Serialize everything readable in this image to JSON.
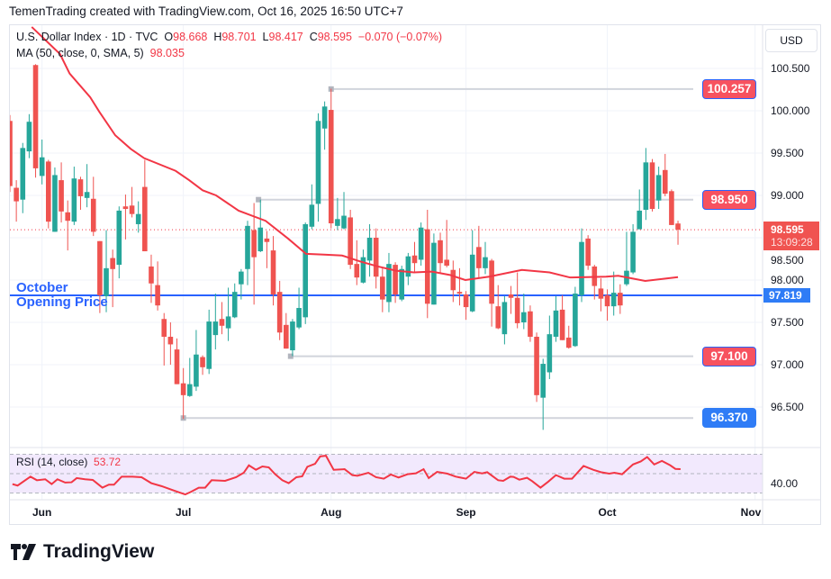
{
  "credit": "TemenTrading created with TradingView.com, Oct 16, 2025 16:50 UTC+7",
  "legend": {
    "symbol": "U.S. Dollar Index · 1D · TVC",
    "o_label": "O",
    "o": "98.668",
    "h_label": "H",
    "h": "98.701",
    "l_label": "L",
    "l": "98.417",
    "c_label": "C",
    "c": "98.595",
    "change": "−0.070 (−0.07%)",
    "ma_label": "MA (50, close, 0, SMA, 5)",
    "ma_value": "98.035"
  },
  "currency_button": "USD",
  "annotation": {
    "line1": "October",
    "line2": "Opening Price"
  },
  "level_tags": [
    {
      "label": "100.257",
      "value": 100.257,
      "style": "red",
      "from_bar": 50
    },
    {
      "label": "98.950",
      "value": 98.95,
      "style": "red",
      "from_bar": 38.7
    },
    {
      "label": "97.100",
      "value": 97.1,
      "style": "red",
      "from_bar": 43.7
    },
    {
      "label": "96.370",
      "value": 96.37,
      "style": "blue",
      "from_bar": 27
    }
  ],
  "current_price": {
    "value": "98.595",
    "countdown": "13:09:28"
  },
  "october_open": {
    "value": 97.819,
    "label": "97.819"
  },
  "rsi_legend": {
    "label": "RSI (14, close)",
    "value": "53.72"
  },
  "rsi_axis_label": "40.00",
  "brand": "TradingView",
  "colors": {
    "up": "#26a69a",
    "down": "#ef5350",
    "ma": "#f23645",
    "oct_line": "#2962ff",
    "rsi": "#f23645"
  },
  "chart_data": {
    "type": "candlestick",
    "title": "U.S. Dollar Index · 1D · TVC",
    "ylim": [
      96.0,
      100.85
    ],
    "y_ticks": [
      "100.500",
      "100.000",
      "99.500",
      "99.000",
      "98.500",
      "98.000",
      "97.500",
      "97.000",
      "96.500"
    ],
    "x_ticks": [
      {
        "label": "Jun",
        "bar": 5
      },
      {
        "label": "Jul",
        "bar": 27
      },
      {
        "label": "Aug",
        "bar": 50
      },
      {
        "label": "Sep",
        "bar": 71
      },
      {
        "label": "Oct",
        "bar": 93
      },
      {
        "label": "Nov",
        "bar": 116
      }
    ],
    "ohlc": [
      [
        99.88,
        99.95,
        99.04,
        99.11
      ],
      [
        99.09,
        99.18,
        98.69,
        98.93
      ],
      [
        98.95,
        99.62,
        98.79,
        99.56
      ],
      [
        99.52,
        99.96,
        99.44,
        99.87
      ],
      [
        100.54,
        100.55,
        99.21,
        99.32
      ],
      [
        99.23,
        99.66,
        99.13,
        99.45
      ],
      [
        99.4,
        99.42,
        98.61,
        98.69
      ],
      [
        98.57,
        99.33,
        98.57,
        99.24
      ],
      [
        99.18,
        99.39,
        98.68,
        98.81
      ],
      [
        98.8,
        98.94,
        98.35,
        98.7
      ],
      [
        98.69,
        99.34,
        98.65,
        99.2
      ],
      [
        99.19,
        99.22,
        98.83,
        98.99
      ],
      [
        98.97,
        99.37,
        98.86,
        99.04
      ],
      [
        98.96,
        99.22,
        98.52,
        98.57
      ],
      [
        98.46,
        98.46,
        97.61,
        97.82
      ],
      [
        97.81,
        98.59,
        97.62,
        98.14
      ],
      [
        98.26,
        98.36,
        97.68,
        98.13
      ],
      [
        98.18,
        98.87,
        98.02,
        98.82
      ],
      [
        98.87,
        99.01,
        98.48,
        98.84
      ],
      [
        98.88,
        99.1,
        98.74,
        98.78
      ],
      [
        98.66,
        98.93,
        98.56,
        98.78
      ],
      [
        99.1,
        99.42,
        98.34,
        98.34
      ],
      [
        98.16,
        98.3,
        97.73,
        97.96
      ],
      [
        97.94,
        98.22,
        97.64,
        97.7
      ],
      [
        97.54,
        97.61,
        96.99,
        97.33
      ],
      [
        97.33,
        97.5,
        97.0,
        97.24
      ],
      [
        97.18,
        97.31,
        96.77,
        96.77
      ],
      [
        96.78,
        96.96,
        96.36,
        96.64
      ],
      [
        96.63,
        97.08,
        96.62,
        96.77
      ],
      [
        96.74,
        97.41,
        96.69,
        97.12
      ],
      [
        97.09,
        97.11,
        96.88,
        96.97
      ],
      [
        96.95,
        97.65,
        96.89,
        97.51
      ],
      [
        97.35,
        97.84,
        97.18,
        97.51
      ],
      [
        97.54,
        97.74,
        97.36,
        97.46
      ],
      [
        97.43,
        97.91,
        97.28,
        97.57
      ],
      [
        97.56,
        97.96,
        97.55,
        97.86
      ],
      [
        97.95,
        98.13,
        97.77,
        98.1
      ],
      [
        98.13,
        98.7,
        97.94,
        98.64
      ],
      [
        98.59,
        98.91,
        97.71,
        98.27
      ],
      [
        98.34,
        98.95,
        98.33,
        98.62
      ],
      [
        98.49,
        98.58,
        98.14,
        98.45
      ],
      [
        98.35,
        98.52,
        97.7,
        97.83
      ],
      [
        97.86,
        97.99,
        97.29,
        97.38
      ],
      [
        97.47,
        97.61,
        97.19,
        97.19
      ],
      [
        97.17,
        97.54,
        97.1,
        97.51
      ],
      [
        97.44,
        97.91,
        97.42,
        97.67
      ],
      [
        97.56,
        98.68,
        97.48,
        98.66
      ],
      [
        98.63,
        99.13,
        98.6,
        98.89
      ],
      [
        98.9,
        99.97,
        98.69,
        99.88
      ],
      [
        99.79,
        100.11,
        99.54,
        100.05
      ],
      [
        100.01,
        100.26,
        98.61,
        98.67
      ],
      [
        98.64,
        98.97,
        98.59,
        98.72
      ],
      [
        98.61,
        99.04,
        98.6,
        98.76
      ],
      [
        98.74,
        98.83,
        98.13,
        98.18
      ],
      [
        98.19,
        98.47,
        97.94,
        98.03
      ],
      [
        97.97,
        98.36,
        97.96,
        98.27
      ],
      [
        98.23,
        98.66,
        98.04,
        98.5
      ],
      [
        98.5,
        98.61,
        97.9,
        98.04
      ],
      [
        98.04,
        98.15,
        97.62,
        97.77
      ],
      [
        97.74,
        98.32,
        97.62,
        98.19
      ],
      [
        98.18,
        98.21,
        97.73,
        97.83
      ],
      [
        97.77,
        98.17,
        97.75,
        98.13
      ],
      [
        98.04,
        98.32,
        97.94,
        98.28
      ],
      [
        98.29,
        98.45,
        98.08,
        98.2
      ],
      [
        98.24,
        98.68,
        98.17,
        98.62
      ],
      [
        98.6,
        98.83,
        97.55,
        97.72
      ],
      [
        97.71,
        98.55,
        97.71,
        98.44
      ],
      [
        98.47,
        98.56,
        98.08,
        98.2
      ],
      [
        98.24,
        98.71,
        98.15,
        98.17
      ],
      [
        98.12,
        98.23,
        97.74,
        97.88
      ],
      [
        97.86,
        98.14,
        97.7,
        97.84
      ],
      [
        97.83,
        97.87,
        97.53,
        97.68
      ],
      [
        97.63,
        98.59,
        97.62,
        98.3
      ],
      [
        98.39,
        98.64,
        98.03,
        98.14
      ],
      [
        98.14,
        98.45,
        98.07,
        98.27
      ],
      [
        98.23,
        98.25,
        97.45,
        97.72
      ],
      [
        97.69,
        97.94,
        97.42,
        97.43
      ],
      [
        97.36,
        97.81,
        97.24,
        97.74
      ],
      [
        97.83,
        97.93,
        97.6,
        97.79
      ],
      [
        97.79,
        98.09,
        97.43,
        97.49
      ],
      [
        97.5,
        97.84,
        97.42,
        97.62
      ],
      [
        97.63,
        97.7,
        97.27,
        97.33
      ],
      [
        97.33,
        97.38,
        96.56,
        96.64
      ],
      [
        96.61,
        97.07,
        96.23,
        97.01
      ],
      [
        96.91,
        97.58,
        96.83,
        97.36
      ],
      [
        97.33,
        97.81,
        97.27,
        97.64
      ],
      [
        97.65,
        97.82,
        97.29,
        97.29
      ],
      [
        97.32,
        97.46,
        97.19,
        97.2
      ],
      [
        97.22,
        97.92,
        97.21,
        97.84
      ],
      [
        97.82,
        98.61,
        97.74,
        98.45
      ],
      [
        98.49,
        98.53,
        98.12,
        98.17
      ],
      [
        98.16,
        98.18,
        97.77,
        97.93
      ],
      [
        97.9,
        98.02,
        97.63,
        97.78
      ],
      [
        97.82,
        97.89,
        97.52,
        97.69
      ],
      [
        97.69,
        98.1,
        97.58,
        97.85
      ],
      [
        97.85,
        97.95,
        97.6,
        97.7
      ],
      [
        97.95,
        98.57,
        97.93,
        98.11
      ],
      [
        98.09,
        98.66,
        98.07,
        98.57
      ],
      [
        98.6,
        99.07,
        98.6,
        98.82
      ],
      [
        98.83,
        99.56,
        98.71,
        99.39
      ],
      [
        99.39,
        99.43,
        98.81,
        98.84
      ],
      [
        98.94,
        99.34,
        98.84,
        99.24
      ],
      [
        99.3,
        99.49,
        98.99,
        99.02
      ],
      [
        99.05,
        99.07,
        98.65,
        98.65
      ],
      [
        98.668,
        98.701,
        98.417,
        98.595
      ]
    ],
    "ma50": [
      [
        3.4,
        100.99
      ],
      [
        7.8,
        100.67
      ],
      [
        9.3,
        100.44
      ],
      [
        12.5,
        100.16
      ],
      [
        13.9,
        99.99
      ],
      [
        16.4,
        99.71
      ],
      [
        18.8,
        99.55
      ],
      [
        20.9,
        99.44
      ],
      [
        25.8,
        99.29
      ],
      [
        27.9,
        99.18
      ],
      [
        30.0,
        99.06
      ],
      [
        32.1,
        99.0
      ],
      [
        35.6,
        98.82
      ],
      [
        39.8,
        98.7
      ],
      [
        43.3,
        98.49
      ],
      [
        46.1,
        98.31
      ],
      [
        48.9,
        98.3
      ],
      [
        51.7,
        98.29
      ],
      [
        54.5,
        98.22
      ],
      [
        57.3,
        98.16
      ],
      [
        60.1,
        98.11
      ],
      [
        62.9,
        98.09
      ],
      [
        65.7,
        98.1
      ],
      [
        68.5,
        98.06
      ],
      [
        70.9,
        98.0
      ],
      [
        74.6,
        98.04
      ],
      [
        79.7,
        98.12
      ],
      [
        84.0,
        98.09
      ],
      [
        87.2,
        98.03
      ],
      [
        92.8,
        98.04
      ],
      [
        94.7,
        98.05
      ],
      [
        98.9,
        97.99
      ],
      [
        104,
        98.035
      ]
    ],
    "rsi": {
      "ylim": [
        30,
        70
      ],
      "levels": [
        70,
        50,
        30
      ],
      "points": [
        [
          0.4,
          39.2
        ],
        [
          1.2,
          37.7
        ],
        [
          3.2,
          46.9
        ],
        [
          4.2,
          43.2
        ],
        [
          5.5,
          44.2
        ],
        [
          6.5,
          39.2
        ],
        [
          7.4,
          44.2
        ],
        [
          8.6,
          40.8
        ],
        [
          9.6,
          41.1
        ],
        [
          10.4,
          45.4
        ],
        [
          11.7,
          44.2
        ],
        [
          12.9,
          43.5
        ],
        [
          14.4,
          35.5
        ],
        [
          15.4,
          38.6
        ],
        [
          16.2,
          38.6
        ],
        [
          17.4,
          46.9
        ],
        [
          19.1,
          46.9
        ],
        [
          20.5,
          46.3
        ],
        [
          22.0,
          40.2
        ],
        [
          23.6,
          37.1
        ],
        [
          25.3,
          33.1
        ],
        [
          26.5,
          30.3
        ],
        [
          27.3,
          28.5
        ],
        [
          28.1,
          30.9
        ],
        [
          29.4,
          35.5
        ],
        [
          30.4,
          35.5
        ],
        [
          31.4,
          43.2
        ],
        [
          33.5,
          42.6
        ],
        [
          35.2,
          46.3
        ],
        [
          36.4,
          50.9
        ],
        [
          37.2,
          58.6
        ],
        [
          38.3,
          54.0
        ],
        [
          39.3,
          57.4
        ],
        [
          40.3,
          56.5
        ],
        [
          41.3,
          49.4
        ],
        [
          42.4,
          43.2
        ],
        [
          43.4,
          40.2
        ],
        [
          44.6,
          46.3
        ],
        [
          45.5,
          47.2
        ],
        [
          46.3,
          57.1
        ],
        [
          47.5,
          60.2
        ],
        [
          48.3,
          67.8
        ],
        [
          49.2,
          68.5
        ],
        [
          50.4,
          54.0
        ],
        [
          52.1,
          54.6
        ],
        [
          53.3,
          48.5
        ],
        [
          54.1,
          47.8
        ],
        [
          55.8,
          50.9
        ],
        [
          57.0,
          46.3
        ],
        [
          58.2,
          44.8
        ],
        [
          59.3,
          49.1
        ],
        [
          60.5,
          46.0
        ],
        [
          61.9,
          49.4
        ],
        [
          63.2,
          50.3
        ],
        [
          64.4,
          54.6
        ],
        [
          65.2,
          45.4
        ],
        [
          66.5,
          51.8
        ],
        [
          68.1,
          50.0
        ],
        [
          69.4,
          46.9
        ],
        [
          71.0,
          44.8
        ],
        [
          72.3,
          51.8
        ],
        [
          73.5,
          50.3
        ],
        [
          74.3,
          51.5
        ],
        [
          76.0,
          43.2
        ],
        [
          76.8,
          42.6
        ],
        [
          77.9,
          46.9
        ],
        [
          78.4,
          46.6
        ],
        [
          79.3,
          43.8
        ],
        [
          80.5,
          45.7
        ],
        [
          81.3,
          42.3
        ],
        [
          82.6,
          35.5
        ],
        [
          83.8,
          41.7
        ],
        [
          85.0,
          48.5
        ],
        [
          86.3,
          44.8
        ],
        [
          87.5,
          44.8
        ],
        [
          89.3,
          58.0
        ],
        [
          90.8,
          54.0
        ],
        [
          92.0,
          51.5
        ],
        [
          93.3,
          50.0
        ],
        [
          94.1,
          50.9
        ],
        [
          95.3,
          49.4
        ],
        [
          97.0,
          59.5
        ],
        [
          98.2,
          62.6
        ],
        [
          99.2,
          67.2
        ],
        [
          100.3,
          59.5
        ],
        [
          101.5,
          63.2
        ],
        [
          102.8,
          58.6
        ],
        [
          103.6,
          54.9
        ],
        [
          104.4,
          54.6
        ]
      ]
    }
  }
}
